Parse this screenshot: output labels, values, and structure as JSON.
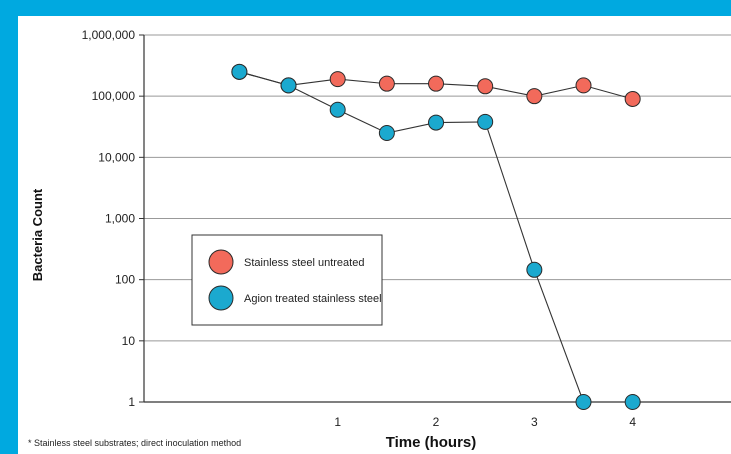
{
  "colors": {
    "frame": "#00A9E0",
    "untreated_fill": "#F26A5B",
    "treated_fill": "#1BA9CF",
    "grid": "#999999",
    "line": "#333333"
  },
  "footnote": "* Stainless steel substrates; direct inoculation method",
  "chart_data": {
    "type": "line",
    "xlabel": "Time (hours)",
    "ylabel": "Bacteria Count",
    "yscale": "log",
    "ylim": [
      1,
      1000000
    ],
    "xlim": [
      -0.97,
      5.0
    ],
    "grid": "horizontal",
    "legend_position": "center-left",
    "x_ticks": [
      1,
      2,
      3,
      4
    ],
    "x_tick_labels": [
      "1",
      "2",
      "3",
      "4"
    ],
    "y_ticks": [
      1,
      10,
      100,
      1000,
      10000,
      100000,
      1000000
    ],
    "y_tick_labels": [
      "1",
      "10",
      "100",
      "1,000",
      "10,000",
      "100,000",
      "1,000,000"
    ],
    "series": [
      {
        "name": "Stainless steel untreated",
        "color": "#F26A5B",
        "x": [
          0,
          0.5,
          1,
          1.5,
          2,
          2.5,
          3,
          3.5,
          4
        ],
        "y": [
          250000,
          150000,
          190000,
          160000,
          160000,
          145000,
          100000,
          150000,
          90000
        ]
      },
      {
        "name": "Agion treated stainless steel",
        "color": "#1BA9CF",
        "x": [
          0,
          0.5,
          1,
          1.5,
          2,
          2.5,
          3,
          3.5,
          4
        ],
        "y": [
          250000,
          150000,
          60000,
          25000,
          37000,
          38000,
          145,
          1,
          1
        ]
      }
    ]
  }
}
